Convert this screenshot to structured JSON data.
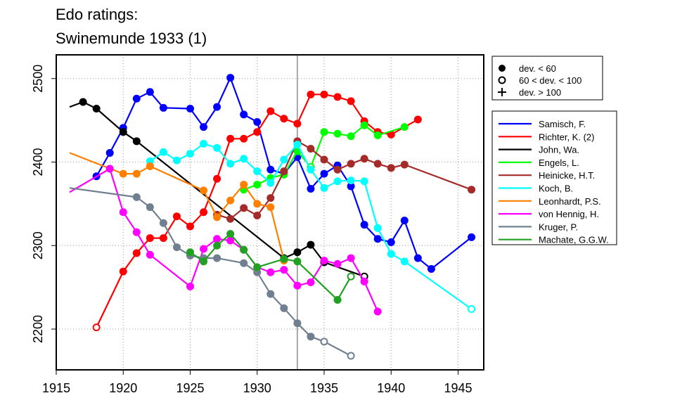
{
  "chart_data": {
    "type": "line",
    "title": [
      "Edo ratings:",
      "Swinemunde 1933 (1)"
    ],
    "xlabel": "",
    "ylabel": "",
    "xlim": [
      1915.5,
      1947.0
    ],
    "ylim": [
      2160,
      2530
    ],
    "x_ticks": [
      1915,
      1920,
      1925,
      1930,
      1935,
      1940,
      1945
    ],
    "y_ticks": [
      2200,
      2300,
      2400,
      2500
    ],
    "grid": "dotted",
    "vline": 1933,
    "marker_legend": [
      {
        "label": "dev. < 60",
        "marker": "filled"
      },
      {
        "label": "60 < dev. < 100",
        "marker": "open"
      },
      {
        "label": "dev. > 100",
        "marker": "none"
      }
    ],
    "series": [
      {
        "name": "Samisch, F.",
        "color": "#0000ff",
        "points": [
          {
            "x": 1918,
            "y": 2383,
            "m": "filled"
          },
          {
            "x": 1919,
            "y": 2411,
            "m": "filled"
          },
          {
            "x": 1920,
            "y": 2441,
            "m": "filled"
          },
          {
            "x": 1921,
            "y": 2476,
            "m": "filled"
          },
          {
            "x": 1922,
            "y": 2484,
            "m": "filled"
          },
          {
            "x": 1923,
            "y": 2465,
            "m": "filled"
          },
          {
            "x": 1925,
            "y": 2464,
            "m": "filled"
          },
          {
            "x": 1926,
            "y": 2442,
            "m": "filled"
          },
          {
            "x": 1927,
            "y": 2466,
            "m": "filled"
          },
          {
            "x": 1928,
            "y": 2501,
            "m": "filled"
          },
          {
            "x": 1929,
            "y": 2457,
            "m": "filled"
          },
          {
            "x": 1930,
            "y": 2448,
            "m": "filled"
          },
          {
            "x": 1931,
            "y": 2391,
            "m": "filled"
          },
          {
            "x": 1932,
            "y": 2386,
            "m": "filled"
          },
          {
            "x": 1933,
            "y": 2406,
            "m": "filled"
          },
          {
            "x": 1934,
            "y": 2368,
            "m": "filled"
          },
          {
            "x": 1935,
            "y": 2386,
            "m": "filled"
          },
          {
            "x": 1936,
            "y": 2396,
            "m": "filled"
          },
          {
            "x": 1937,
            "y": 2371,
            "m": "filled"
          },
          {
            "x": 1938,
            "y": 2325,
            "m": "filled"
          },
          {
            "x": 1939,
            "y": 2308,
            "m": "filled"
          },
          {
            "x": 1940,
            "y": 2304,
            "m": "filled"
          },
          {
            "x": 1941,
            "y": 2330,
            "m": "filled"
          },
          {
            "x": 1942,
            "y": 2285,
            "m": "filled"
          },
          {
            "x": 1943,
            "y": 2272,
            "m": "filled"
          },
          {
            "x": 1946,
            "y": 2310,
            "m": "filled"
          }
        ]
      },
      {
        "name": "Richter, K. (2)",
        "color": "#ff0000",
        "points": [
          {
            "x": 1918,
            "y": 2202,
            "m": "open"
          },
          {
            "x": 1920,
            "y": 2269,
            "m": "filled"
          },
          {
            "x": 1921,
            "y": 2291,
            "m": "filled"
          },
          {
            "x": 1922,
            "y": 2309,
            "m": "filled"
          },
          {
            "x": 1923,
            "y": 2309,
            "m": "filled"
          },
          {
            "x": 1924,
            "y": 2335,
            "m": "filled"
          },
          {
            "x": 1925,
            "y": 2323,
            "m": "filled"
          },
          {
            "x": 1926,
            "y": 2340,
            "m": "filled"
          },
          {
            "x": 1927,
            "y": 2380,
            "m": "filled"
          },
          {
            "x": 1928,
            "y": 2428,
            "m": "filled"
          },
          {
            "x": 1929,
            "y": 2428,
            "m": "filled"
          },
          {
            "x": 1930,
            "y": 2436,
            "m": "filled"
          },
          {
            "x": 1931,
            "y": 2461,
            "m": "filled"
          },
          {
            "x": 1932,
            "y": 2452,
            "m": "filled"
          },
          {
            "x": 1933,
            "y": 2446,
            "m": "filled"
          },
          {
            "x": 1934,
            "y": 2481,
            "m": "filled"
          },
          {
            "x": 1935,
            "y": 2481,
            "m": "filled"
          },
          {
            "x": 1936,
            "y": 2478,
            "m": "filled"
          },
          {
            "x": 1937,
            "y": 2473,
            "m": "filled"
          },
          {
            "x": 1938,
            "y": 2449,
            "m": "filled"
          },
          {
            "x": 1939,
            "y": 2436,
            "m": "filled"
          },
          {
            "x": 1940,
            "y": 2433,
            "m": "filled"
          },
          {
            "x": 1942,
            "y": 2451,
            "m": "filled"
          }
        ]
      },
      {
        "name": "John, Wa.",
        "color": "#000000",
        "points": [
          {
            "x": 1916,
            "y": 2466,
            "m": "none"
          },
          {
            "x": 1917,
            "y": 2472,
            "m": "filled"
          },
          {
            "x": 1918,
            "y": 2464,
            "m": "filled"
          },
          {
            "x": 1920,
            "y": 2436,
            "m": "filled"
          },
          {
            "x": 1921,
            "y": 2425,
            "m": "filled"
          },
          {
            "x": 1932,
            "y": 2285,
            "m": "filled"
          },
          {
            "x": 1933,
            "y": 2292,
            "m": "filled"
          },
          {
            "x": 1934,
            "y": 2301,
            "m": "filled"
          },
          {
            "x": 1935,
            "y": 2280,
            "m": "filled"
          },
          {
            "x": 1938,
            "y": 2263,
            "m": "open"
          }
        ]
      },
      {
        "name": "Engels, L.",
        "color": "#00ff00",
        "points": [
          {
            "x": 1929,
            "y": 2367,
            "m": "filled"
          },
          {
            "x": 1930,
            "y": 2373,
            "m": "filled"
          },
          {
            "x": 1931,
            "y": 2381,
            "m": "filled"
          },
          {
            "x": 1932,
            "y": 2385,
            "m": "filled"
          },
          {
            "x": 1933,
            "y": 2413,
            "m": "filled"
          },
          {
            "x": 1934,
            "y": 2394,
            "m": "open"
          },
          {
            "x": 1935,
            "y": 2436,
            "m": "filled"
          },
          {
            "x": 1936,
            "y": 2434,
            "m": "filled"
          },
          {
            "x": 1937,
            "y": 2431,
            "m": "filled"
          },
          {
            "x": 1938,
            "y": 2444,
            "m": "filled"
          },
          {
            "x": 1939,
            "y": 2432,
            "m": "filled"
          },
          {
            "x": 1941,
            "y": 2442,
            "m": "filled"
          }
        ]
      },
      {
        "name": "Heinicke, H.T.",
        "color": "#a52a2a",
        "points": [
          {
            "x": 1927,
            "y": 2337,
            "m": "filled"
          },
          {
            "x": 1928,
            "y": 2332,
            "m": "filled"
          },
          {
            "x": 1929,
            "y": 2345,
            "m": "filled"
          },
          {
            "x": 1930,
            "y": 2336,
            "m": "filled"
          },
          {
            "x": 1931,
            "y": 2357,
            "m": "filled"
          },
          {
            "x": 1932,
            "y": 2389,
            "m": "filled"
          },
          {
            "x": 1933,
            "y": 2425,
            "m": "filled"
          },
          {
            "x": 1934,
            "y": 2416,
            "m": "filled"
          },
          {
            "x": 1935,
            "y": 2403,
            "m": "filled"
          },
          {
            "x": 1936,
            "y": 2391,
            "m": "filled"
          },
          {
            "x": 1937,
            "y": 2398,
            "m": "filled"
          },
          {
            "x": 1938,
            "y": 2404,
            "m": "filled"
          },
          {
            "x": 1939,
            "y": 2398,
            "m": "filled"
          },
          {
            "x": 1940,
            "y": 2393,
            "m": "filled"
          },
          {
            "x": 1941,
            "y": 2397,
            "m": "filled"
          },
          {
            "x": 1946,
            "y": 2367,
            "m": "filled"
          }
        ]
      },
      {
        "name": "Koch, B.",
        "color": "#00ffff",
        "points": [
          {
            "x": 1922,
            "y": 2401,
            "m": "filled"
          },
          {
            "x": 1923,
            "y": 2412,
            "m": "filled"
          },
          {
            "x": 1924,
            "y": 2402,
            "m": "filled"
          },
          {
            "x": 1925,
            "y": 2410,
            "m": "filled"
          },
          {
            "x": 1926,
            "y": 2422,
            "m": "filled"
          },
          {
            "x": 1927,
            "y": 2417,
            "m": "filled"
          },
          {
            "x": 1928,
            "y": 2398,
            "m": "filled"
          },
          {
            "x": 1929,
            "y": 2404,
            "m": "filled"
          },
          {
            "x": 1930,
            "y": 2389,
            "m": "filled"
          },
          {
            "x": 1931,
            "y": 2375,
            "m": "filled"
          },
          {
            "x": 1932,
            "y": 2403,
            "m": "filled"
          },
          {
            "x": 1933,
            "y": 2421,
            "m": "filled"
          },
          {
            "x": 1934,
            "y": 2391,
            "m": "filled"
          },
          {
            "x": 1935,
            "y": 2369,
            "m": "filled"
          },
          {
            "x": 1936,
            "y": 2377,
            "m": "filled"
          },
          {
            "x": 1937,
            "y": 2378,
            "m": "filled"
          },
          {
            "x": 1938,
            "y": 2377,
            "m": "filled"
          },
          {
            "x": 1939,
            "y": 2321,
            "m": "filled"
          },
          {
            "x": 1940,
            "y": 2290,
            "m": "filled"
          },
          {
            "x": 1941,
            "y": 2281,
            "m": "filled"
          },
          {
            "x": 1946,
            "y": 2224,
            "m": "open"
          }
        ]
      },
      {
        "name": "Leonhardt, P.S.",
        "color": "#ff7f00",
        "points": [
          {
            "x": 1916,
            "y": 2411,
            "m": "none"
          },
          {
            "x": 1920,
            "y": 2386,
            "m": "filled"
          },
          {
            "x": 1921,
            "y": 2386,
            "m": "filled"
          },
          {
            "x": 1922,
            "y": 2395,
            "m": "filled"
          },
          {
            "x": 1926,
            "y": 2366,
            "m": "filled"
          },
          {
            "x": 1927,
            "y": 2334,
            "m": "filled"
          },
          {
            "x": 1928,
            "y": 2354,
            "m": "filled"
          },
          {
            "x": 1929,
            "y": 2373,
            "m": "filled"
          },
          {
            "x": 1930,
            "y": 2350,
            "m": "filled"
          },
          {
            "x": 1931,
            "y": 2346,
            "m": "filled"
          },
          {
            "x": 1932,
            "y": 2282,
            "m": "filled"
          }
        ]
      },
      {
        "name": "von Hennig, H.",
        "color": "#ff00ff",
        "points": [
          {
            "x": 1916,
            "y": 2364,
            "m": "none"
          },
          {
            "x": 1919,
            "y": 2392,
            "m": "filled"
          },
          {
            "x": 1920,
            "y": 2340,
            "m": "filled"
          },
          {
            "x": 1921,
            "y": 2316,
            "m": "filled"
          },
          {
            "x": 1922,
            "y": 2289,
            "m": "filled"
          },
          {
            "x": 1925,
            "y": 2251,
            "m": "filled"
          },
          {
            "x": 1926,
            "y": 2296,
            "m": "filled"
          },
          {
            "x": 1927,
            "y": 2308,
            "m": "filled"
          },
          {
            "x": 1928,
            "y": 2306,
            "m": "filled"
          },
          {
            "x": 1929,
            "y": 2295,
            "m": "filled"
          },
          {
            "x": 1930,
            "y": 2274,
            "m": "filled"
          },
          {
            "x": 1931,
            "y": 2268,
            "m": "filled"
          },
          {
            "x": 1932,
            "y": 2271,
            "m": "filled"
          },
          {
            "x": 1933,
            "y": 2252,
            "m": "filled"
          },
          {
            "x": 1934,
            "y": 2256,
            "m": "filled"
          },
          {
            "x": 1935,
            "y": 2282,
            "m": "filled"
          },
          {
            "x": 1936,
            "y": 2278,
            "m": "filled"
          },
          {
            "x": 1937,
            "y": 2285,
            "m": "filled"
          },
          {
            "x": 1938,
            "y": 2257,
            "m": "filled"
          },
          {
            "x": 1939,
            "y": 2221,
            "m": "filled"
          }
        ]
      },
      {
        "name": "Kruger, P.",
        "color": "#708090",
        "points": [
          {
            "x": 1916,
            "y": 2369,
            "m": "none"
          },
          {
            "x": 1921,
            "y": 2358,
            "m": "filled"
          },
          {
            "x": 1922,
            "y": 2346,
            "m": "filled"
          },
          {
            "x": 1923,
            "y": 2327,
            "m": "filled"
          },
          {
            "x": 1924,
            "y": 2298,
            "m": "filled"
          },
          {
            "x": 1925,
            "y": 2288,
            "m": "filled"
          },
          {
            "x": 1926,
            "y": 2285,
            "m": "filled"
          },
          {
            "x": 1927,
            "y": 2285,
            "m": "filled"
          },
          {
            "x": 1929,
            "y": 2279,
            "m": "filled"
          },
          {
            "x": 1930,
            "y": 2268,
            "m": "filled"
          },
          {
            "x": 1931,
            "y": 2242,
            "m": "filled"
          },
          {
            "x": 1932,
            "y": 2225,
            "m": "filled"
          },
          {
            "x": 1933,
            "y": 2207,
            "m": "filled"
          },
          {
            "x": 1934,
            "y": 2191,
            "m": "filled"
          },
          {
            "x": 1935,
            "y": 2185,
            "m": "open"
          },
          {
            "x": 1937,
            "y": 2168,
            "m": "open"
          }
        ]
      },
      {
        "name": "Machate, G.G.W.",
        "color": "#22a022",
        "points": [
          {
            "x": 1925,
            "y": 2292,
            "m": "filled"
          },
          {
            "x": 1926,
            "y": 2281,
            "m": "filled"
          },
          {
            "x": 1927,
            "y": 2300,
            "m": "filled"
          },
          {
            "x": 1928,
            "y": 2314,
            "m": "filled"
          },
          {
            "x": 1929,
            "y": 2295,
            "m": "filled"
          },
          {
            "x": 1930,
            "y": 2274,
            "m": "filled"
          },
          {
            "x": 1932,
            "y": 2284,
            "m": "filled"
          },
          {
            "x": 1933,
            "y": 2281,
            "m": "filled"
          },
          {
            "x": 1936,
            "y": 2235,
            "m": "filled"
          },
          {
            "x": 1937,
            "y": 2263,
            "m": "open"
          }
        ]
      }
    ]
  }
}
